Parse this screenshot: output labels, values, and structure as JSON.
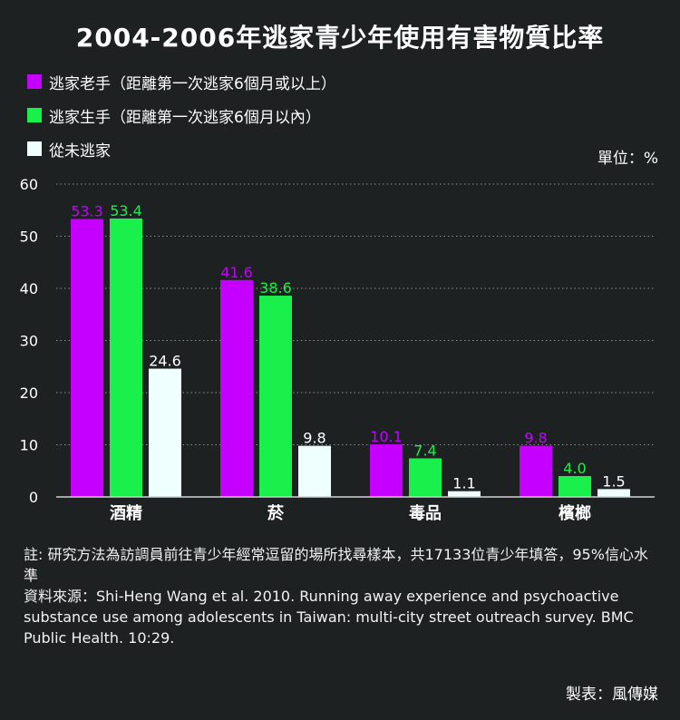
{
  "title": "2004-2006年逃家青少年使用有害物質比率",
  "unit_label": "單位：%",
  "colors": {
    "background": "#1d2122",
    "series1": "#c600ff",
    "series2": "#19f04b",
    "series3": "#effffd",
    "grid": "#8a8f8f",
    "axis": "#cfd3d3"
  },
  "chart_data": {
    "type": "bar",
    "title": "2004-2006年逃家青少年使用有害物質比率",
    "ylabel": "單位：%",
    "xlabel": "",
    "ylim": [
      0,
      60
    ],
    "yticks": [
      0,
      10,
      20,
      30,
      40,
      50,
      60
    ],
    "grid": true,
    "legend_position": "top-left",
    "categories": [
      "酒精",
      "菸",
      "毒品",
      "檳榔"
    ],
    "series": [
      {
        "name": "逃家老手（距離第一次逃家6個月或以上）",
        "color": "#c600ff",
        "label_color": "#c600ff",
        "values": [
          53.3,
          41.6,
          10.1,
          9.8
        ]
      },
      {
        "name": "逃家生手（距離第一次逃家6個月以內）",
        "color": "#19f04b",
        "label_color": "#19f04b",
        "values": [
          53.4,
          38.6,
          7.4,
          4.0
        ]
      },
      {
        "name": "從未逃家",
        "color": "#effffd",
        "label_color": "#ffffff",
        "values": [
          24.6,
          9.8,
          1.1,
          1.5
        ]
      }
    ]
  },
  "notes": {
    "note": "註: 研究方法為訪調員前往青少年經常逗留的場所找尋樣本，共17133位青少年填答，95%信心水準",
    "source": "資料來源：Shi-Heng Wang et al. 2010. Running away experience and psychoactive substance use among adolescents in Taiwan: multi-city street outreach survey. BMC Public Health. 10:29."
  },
  "credit": "製表：風傳媒"
}
